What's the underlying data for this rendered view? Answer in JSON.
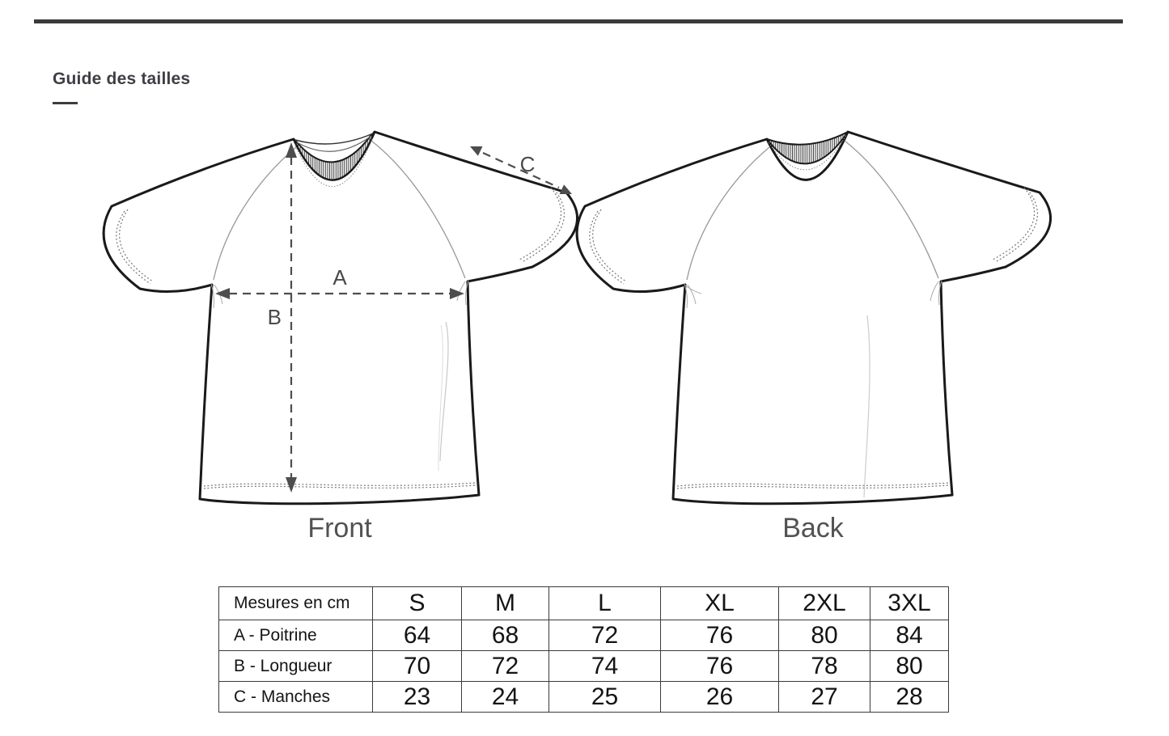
{
  "heading": "Guide des tailles",
  "diagram": {
    "front_caption": "Front",
    "back_caption": "Back",
    "measure_a_label": "A",
    "measure_b_label": "B",
    "measure_c_label": "C"
  },
  "size_table": {
    "columns": [
      "Mesures en cm",
      "S",
      "M",
      "L",
      "XL",
      "2XL",
      "3XL"
    ],
    "rows": [
      {
        "label": "A - Poitrine",
        "values": [
          "64",
          "68",
          "72",
          "76",
          "80",
          "84"
        ]
      },
      {
        "label": "B - Longueur",
        "values": [
          "70",
          "72",
          "74",
          "76",
          "78",
          "80"
        ]
      },
      {
        "label": "C - Manches",
        "values": [
          "23",
          "24",
          "25",
          "26",
          "27",
          "28"
        ]
      }
    ]
  },
  "colors": {
    "rule_dark": "#3a3a3a",
    "outline_dark": "#1a1a1a",
    "measure_gray": "#4d4d4d",
    "caption_gray": "#525252"
  }
}
